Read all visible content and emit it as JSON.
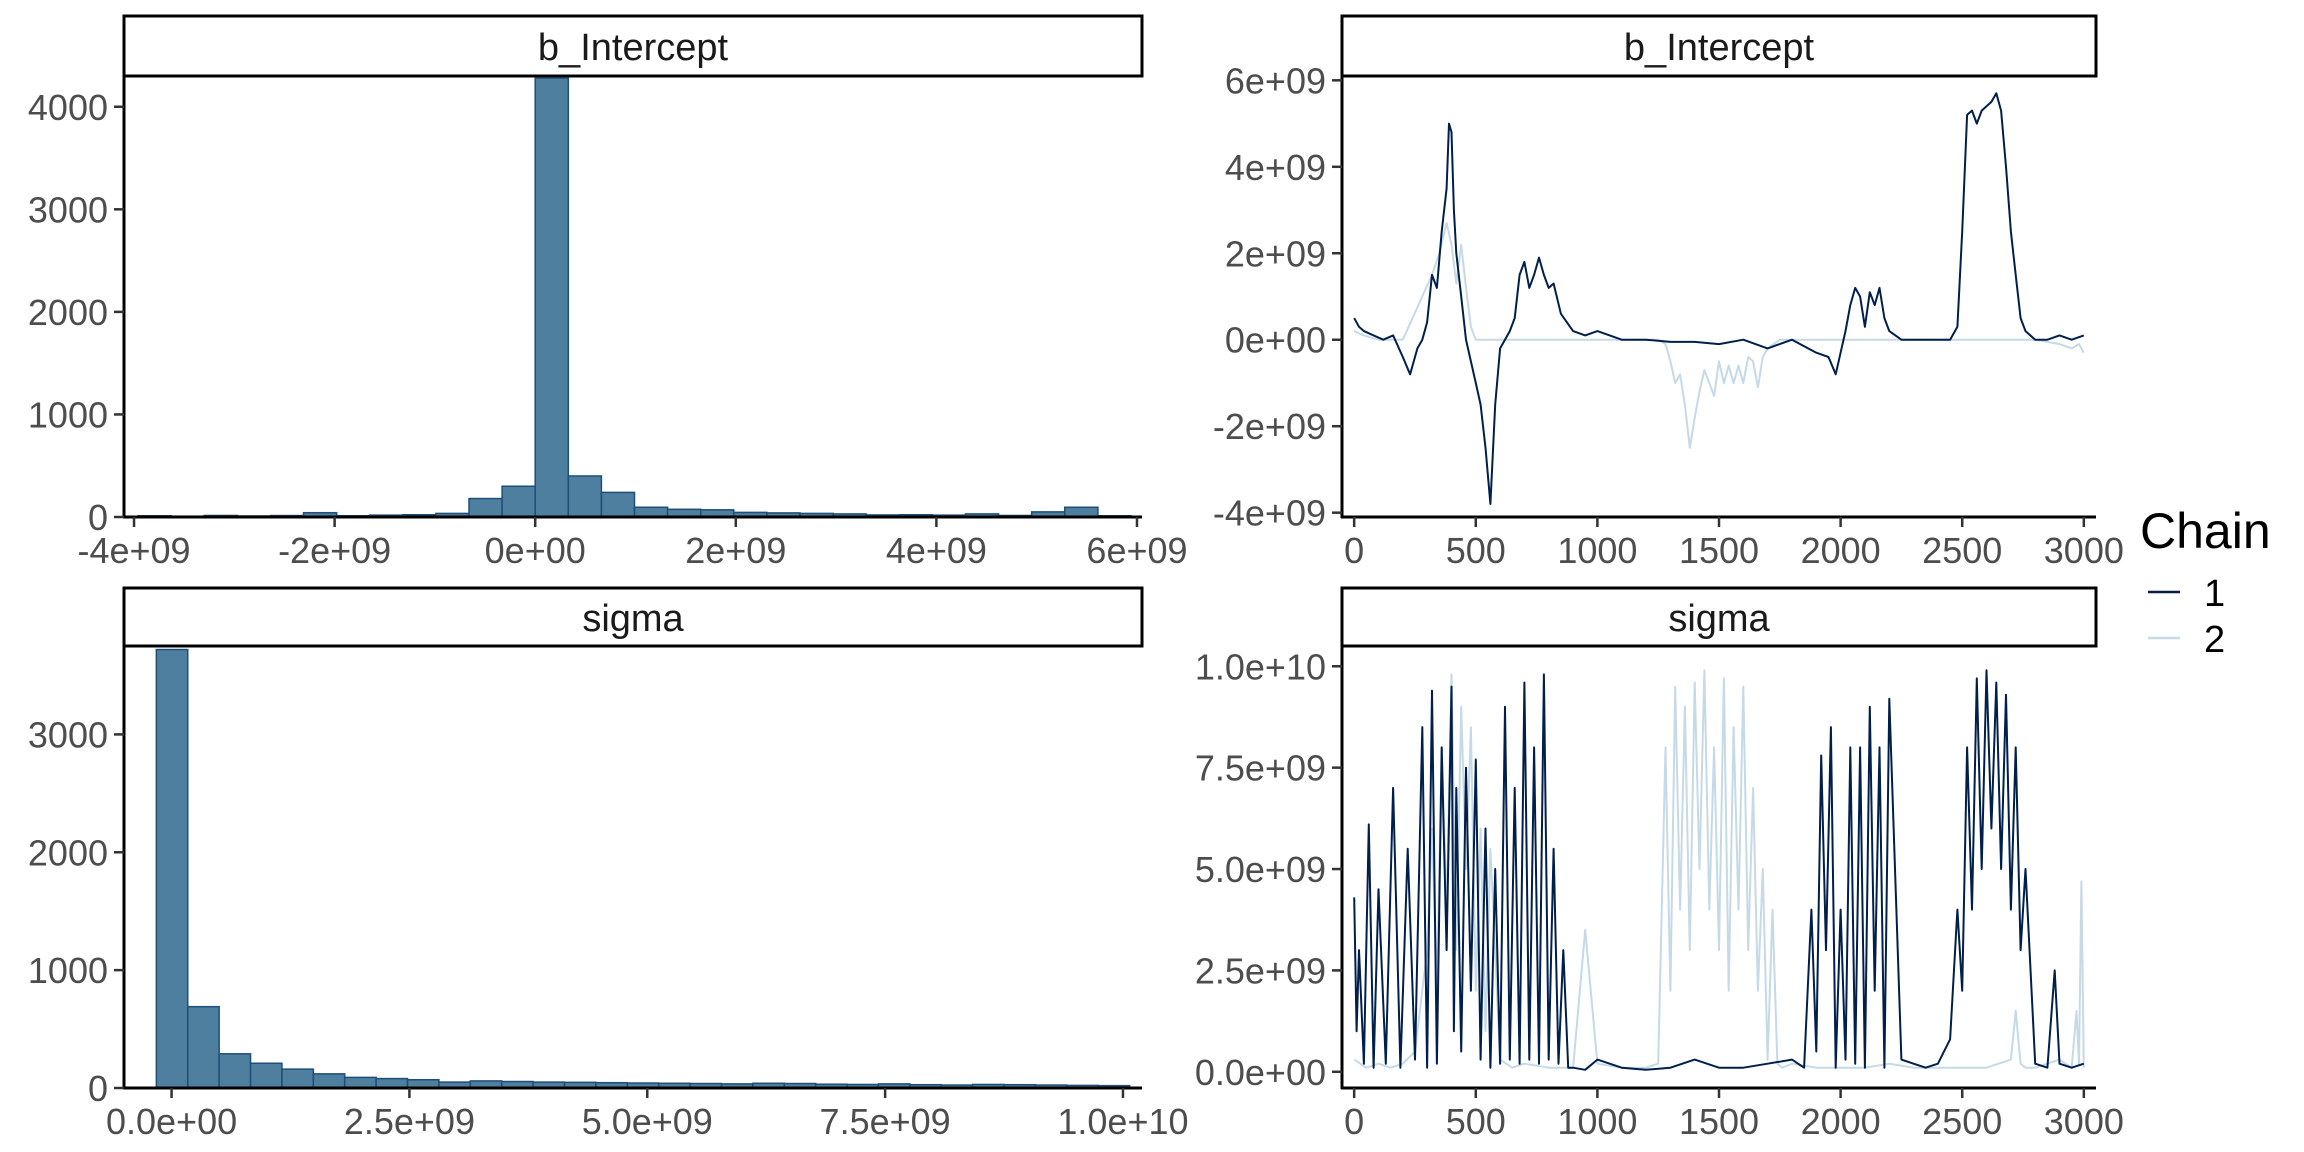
{
  "legend": {
    "title": "Chain",
    "entries": [
      {
        "label": "1",
        "color": "#011f4b"
      },
      {
        "label": "2",
        "color": "#c6d9e6"
      }
    ]
  },
  "chart_data": [
    {
      "type": "bar",
      "subtype": "histogram",
      "title": "b_Intercept",
      "xlabel": "",
      "ylabel": "",
      "xlim": [
        -4100000000.0,
        6050000000.0
      ],
      "ylim": [
        0,
        4300
      ],
      "xticks": [
        -4000000000.0,
        -2000000000.0,
        0,
        2000000000.0,
        4000000000.0,
        6000000000.0
      ],
      "xtick_labels": [
        "-4e+09",
        "-2e+09",
        "0e+00",
        "2e+09",
        "4e+09",
        "6e+09"
      ],
      "yticks": [
        0,
        1000,
        2000,
        3000,
        4000
      ],
      "ytick_labels": [
        "0",
        "1000",
        "2000",
        "3000",
        "4000"
      ],
      "bin_width": 330000000.0,
      "bins_start": [
        -3960000000.0,
        -3630000000.0,
        -3300000000.0,
        -2970000000.0,
        -2640000000.0,
        -2310000000.0,
        -1980000000.0,
        -1650000000.0,
        -1320000000.0,
        -990000000.0,
        -660000000.0,
        -330000000.0,
        0,
        330000000.0,
        660000000.0,
        990000000.0,
        1320000000.0,
        1650000000.0,
        1980000000.0,
        2310000000.0,
        2640000000.0,
        2970000000.0,
        3300000000.0,
        3630000000.0,
        3960000000.0,
        4290000000.0,
        4620000000.0,
        4950000000.0,
        5280000000.0,
        5610000000.0
      ],
      "counts": [
        12,
        8,
        15,
        10,
        14,
        42,
        12,
        18,
        22,
        35,
        180,
        300,
        4280,
        400,
        240,
        95,
        75,
        70,
        45,
        40,
        35,
        30,
        20,
        22,
        18,
        30,
        15,
        50,
        95,
        12
      ],
      "fill": "#4f7f9e",
      "stroke": "#1f4e79"
    },
    {
      "type": "line",
      "subtype": "trace",
      "title": "b_Intercept",
      "xlabel": "",
      "ylabel": "",
      "xlim": [
        -50,
        3050
      ],
      "ylim": [
        -4100000000.0,
        6100000000.0
      ],
      "xticks": [
        0,
        500,
        1000,
        1500,
        2000,
        2500,
        3000
      ],
      "xtick_labels": [
        "0",
        "500",
        "1000",
        "1500",
        "2000",
        "2500",
        "3000"
      ],
      "yticks": [
        -4000000000.0,
        -2000000000.0,
        0,
        2000000000.0,
        4000000000.0,
        6000000000.0
      ],
      "ytick_labels": [
        "-4e+09",
        "-2e+09",
        "0e+00",
        "2e+09",
        "4e+09",
        "6e+09"
      ],
      "series": [
        {
          "name": "1",
          "color": "#011f4b",
          "x": [
            0,
            20,
            40,
            80,
            120,
            160,
            200,
            230,
            260,
            280,
            300,
            320,
            340,
            360,
            380,
            390,
            400,
            410,
            420,
            440,
            460,
            480,
            500,
            520,
            540,
            560,
            580,
            600,
            620,
            640,
            660,
            680,
            700,
            720,
            740,
            760,
            780,
            800,
            820,
            850,
            900,
            950,
            1000,
            1100,
            1200,
            1300,
            1400,
            1500,
            1600,
            1700,
            1800,
            1900,
            1950,
            1980,
            2000,
            2020,
            2040,
            2060,
            2080,
            2100,
            2120,
            2140,
            2160,
            2180,
            2200,
            2250,
            2300,
            2350,
            2400,
            2450,
            2480,
            2500,
            2520,
            2540,
            2560,
            2580,
            2600,
            2620,
            2640,
            2660,
            2680,
            2700,
            2720,
            2740,
            2760,
            2800,
            2850,
            2900,
            2950,
            3000
          ],
          "y": [
            500000000.0,
            300000000.0,
            200000000.0,
            100000000.0,
            0,
            100000000.0,
            -400000000.0,
            -800000000.0,
            -200000000.0,
            0,
            400000000.0,
            1500000000.0,
            1200000000.0,
            2500000000.0,
            3500000000.0,
            5000000000.0,
            4800000000.0,
            3000000000.0,
            2000000000.0,
            1000000000.0,
            0,
            -500000000.0,
            -1000000000.0,
            -1500000000.0,
            -2500000000.0,
            -3800000000.0,
            -1500000000.0,
            -200000000.0,
            0,
            200000000.0,
            500000000.0,
            1500000000.0,
            1800000000.0,
            1200000000.0,
            1500000000.0,
            1900000000.0,
            1500000000.0,
            1200000000.0,
            1300000000.0,
            600000000.0,
            200000000.0,
            100000000.0,
            200000000.0,
            0,
            0,
            -50000000.0,
            -50000000.0,
            -100000000.0,
            0,
            -200000000.0,
            0,
            -300000000.0,
            -400000000.0,
            -800000000.0,
            -300000000.0,
            200000000.0,
            800000000.0,
            1200000000.0,
            1000000000.0,
            300000000.0,
            1100000000.0,
            800000000.0,
            1200000000.0,
            500000000.0,
            200000000.0,
            0,
            0,
            0,
            0,
            0,
            300000000.0,
            2500000000.0,
            5200000000.0,
            5300000000.0,
            5000000000.0,
            5300000000.0,
            5400000000.0,
            5500000000.0,
            5700000000.0,
            5300000000.0,
            4000000000.0,
            2500000000.0,
            1500000000.0,
            500000000.0,
            200000000.0,
            0,
            0,
            100000000.0,
            0,
            100000000.0
          ]
        },
        {
          "name": "2",
          "color": "#c6d9e6",
          "x": [
            0,
            40,
            100,
            200,
            280,
            320,
            350,
            380,
            400,
            420,
            440,
            460,
            480,
            500,
            550,
            600,
            700,
            800,
            900,
            1000,
            1100,
            1200,
            1250,
            1280,
            1300,
            1320,
            1340,
            1360,
            1380,
            1400,
            1420,
            1440,
            1460,
            1480,
            1500,
            1520,
            1540,
            1560,
            1580,
            1600,
            1620,
            1640,
            1660,
            1680,
            1700,
            1750,
            1800,
            1900,
            2000,
            2100,
            2200,
            2300,
            2400,
            2500,
            2600,
            2700,
            2800,
            2900,
            2950,
            2980,
            3000
          ],
          "y": [
            200000000.0,
            100000000.0,
            0,
            0,
            1000000000.0,
            1500000000.0,
            2000000000.0,
            2700000000.0,
            2200000000.0,
            1300000000.0,
            2200000000.0,
            1200000000.0,
            300000000.0,
            0,
            0,
            0,
            0,
            0,
            0,
            0,
            0,
            0,
            0,
            -100000000.0,
            -500000000.0,
            -1000000000.0,
            -800000000.0,
            -1500000000.0,
            -2500000000.0,
            -1800000000.0,
            -1200000000.0,
            -700000000.0,
            -1000000000.0,
            -1300000000.0,
            -500000000.0,
            -1000000000.0,
            -600000000.0,
            -1000000000.0,
            -600000000.0,
            -1000000000.0,
            -400000000.0,
            -500000000.0,
            -1100000000.0,
            -400000000.0,
            -200000000.0,
            0,
            0,
            0,
            0,
            0,
            0,
            0,
            0,
            0,
            0,
            0,
            0,
            -100000000.0,
            -200000000.0,
            -100000000.0,
            -300000000.0
          ]
        }
      ]
    },
    {
      "type": "bar",
      "subtype": "histogram",
      "title": "sigma",
      "xlabel": "",
      "ylabel": "",
      "xlim": [
        -500000000.0,
        10200000000.0
      ],
      "ylim": [
        0,
        3750
      ],
      "xticks": [
        0,
        2500000000.0,
        5000000000.0,
        7500000000.0,
        10000000000.0
      ],
      "xtick_labels": [
        "0.0e+00",
        "2.5e+09",
        "5.0e+09",
        "7.5e+09",
        "1.0e+10"
      ],
      "yticks": [
        0,
        1000,
        2000,
        3000
      ],
      "ytick_labels": [
        "0",
        "1000",
        "2000",
        "3000"
      ],
      "bin_width": 330000000.0,
      "bins_start": [
        -160000000.0,
        170000000.0,
        500000000.0,
        830000000.0,
        1160000000.0,
        1490000000.0,
        1820000000.0,
        2150000000.0,
        2480000000.0,
        2810000000.0,
        3140000000.0,
        3470000000.0,
        3800000000.0,
        4130000000.0,
        4460000000.0,
        4790000000.0,
        5120000000.0,
        5450000000.0,
        5780000000.0,
        6110000000.0,
        6440000000.0,
        6770000000.0,
        7100000000.0,
        7430000000.0,
        7760000000.0,
        8090000000.0,
        8420000000.0,
        8750000000.0,
        9080000000.0,
        9410000000.0,
        9740000000.0
      ],
      "counts": [
        3720,
        690,
        290,
        210,
        160,
        120,
        90,
        80,
        70,
        50,
        60,
        55,
        50,
        48,
        45,
        42,
        40,
        38,
        35,
        40,
        38,
        32,
        30,
        35,
        28,
        25,
        30,
        28,
        25,
        22,
        20
      ],
      "fill": "#4f7f9e",
      "stroke": "#1f4e79"
    },
    {
      "type": "line",
      "subtype": "trace",
      "title": "sigma",
      "xlabel": "",
      "ylabel": "",
      "xlim": [
        -50,
        3050
      ],
      "ylim": [
        -400000000.0,
        10500000000.0
      ],
      "xticks": [
        0,
        500,
        1000,
        1500,
        2000,
        2500,
        3000
      ],
      "xtick_labels": [
        "0",
        "500",
        "1000",
        "1500",
        "2000",
        "2500",
        "3000"
      ],
      "yticks": [
        0,
        2500000000.0,
        5000000000.0,
        7500000000.0,
        10000000000.0
      ],
      "ytick_labels": [
        "0.0e+00",
        "2.5e+09",
        "5.0e+09",
        "7.5e+09",
        "1.0e+10"
      ],
      "series": [
        {
          "name": "1",
          "color": "#011f4b",
          "x": [
            0,
            10,
            20,
            40,
            60,
            80,
            100,
            130,
            160,
            190,
            220,
            250,
            280,
            300,
            320,
            340,
            360,
            380,
            400,
            410,
            420,
            440,
            460,
            480,
            500,
            520,
            540,
            560,
            580,
            600,
            620,
            640,
            660,
            680,
            700,
            720,
            740,
            760,
            780,
            800,
            820,
            840,
            860,
            880,
            900,
            950,
            1000,
            1100,
            1200,
            1300,
            1400,
            1500,
            1600,
            1700,
            1800,
            1850,
            1880,
            1900,
            1920,
            1940,
            1960,
            1980,
            2000,
            2020,
            2040,
            2060,
            2080,
            2100,
            2120,
            2140,
            2160,
            2180,
            2200,
            2250,
            2300,
            2350,
            2400,
            2450,
            2480,
            2500,
            2520,
            2540,
            2560,
            2580,
            2600,
            2620,
            2640,
            2660,
            2680,
            2700,
            2720,
            2740,
            2760,
            2800,
            2850,
            2880,
            2900,
            2950,
            3000
          ],
          "y": [
            4300000000.0,
            1000000000.0,
            3000000000.0,
            200000000.0,
            6100000000.0,
            100000000.0,
            4500000000.0,
            200000000.0,
            7000000000.0,
            100000000.0,
            5500000000.0,
            300000000.0,
            8500000000.0,
            100000000.0,
            9400000000.0,
            200000000.0,
            8000000000.0,
            3000000000.0,
            9500000000.0,
            1000000000.0,
            7000000000.0,
            500000000.0,
            7500000000.0,
            2000000000.0,
            7700000000.0,
            300000000.0,
            6000000000.0,
            100000000.0,
            5000000000.0,
            200000000.0,
            9000000000.0,
            300000000.0,
            7000000000.0,
            200000000.0,
            9600000000.0,
            300000000.0,
            8000000000.0,
            200000000.0,
            9800000000.0,
            300000000.0,
            5500000000.0,
            200000000.0,
            3000000000.0,
            100000000.0,
            100000000.0,
            50000000.0,
            300000000.0,
            100000000.0,
            50000000.0,
            100000000.0,
            300000000.0,
            100000000.0,
            100000000.0,
            200000000.0,
            300000000.0,
            100000000.0,
            4000000000.0,
            500000000.0,
            7800000000.0,
            3000000000.0,
            8500000000.0,
            100000000.0,
            4000000000.0,
            300000000.0,
            8000000000.0,
            200000000.0,
            8000000000.0,
            100000000.0,
            9000000000.0,
            2000000000.0,
            8000000000.0,
            100000000.0,
            9200000000.0,
            300000000.0,
            200000000.0,
            100000000.0,
            200000000.0,
            800000000.0,
            4000000000.0,
            2000000000.0,
            8000000000.0,
            4000000000.0,
            9700000000.0,
            5000000000.0,
            9900000000.0,
            6000000000.0,
            9600000000.0,
            5000000000.0,
            9300000000.0,
            4000000000.0,
            8000000000.0,
            3000000000.0,
            5000000000.0,
            200000000.0,
            100000000.0,
            2500000000.0,
            200000000.0,
            100000000.0,
            200000000.0
          ]
        },
        {
          "name": "2",
          "color": "#c6d9e6",
          "x": [
            0,
            50,
            100,
            150,
            200,
            250,
            300,
            320,
            340,
            360,
            380,
            400,
            420,
            440,
            460,
            480,
            500,
            520,
            540,
            560,
            600,
            650,
            700,
            800,
            900,
            950,
            1000,
            1100,
            1200,
            1250,
            1280,
            1300,
            1320,
            1340,
            1360,
            1380,
            1400,
            1420,
            1440,
            1460,
            1480,
            1500,
            1520,
            1540,
            1560,
            1580,
            1600,
            1620,
            1640,
            1660,
            1680,
            1700,
            1720,
            1740,
            1760,
            1800,
            1900,
            2000,
            2100,
            2200,
            2300,
            2400,
            2500,
            2600,
            2700,
            2720,
            2740,
            2760,
            2800,
            2850,
            2900,
            2950,
            2970,
            2980,
            2990,
            3000
          ],
          "y": [
            300000000.0,
            100000000.0,
            200000000.0,
            100000000.0,
            200000000.0,
            500000000.0,
            3000000000.0,
            6000000000.0,
            2000000000.0,
            8000000000.0,
            4000000000.0,
            9800000000.0,
            3000000000.0,
            9000000000.0,
            5000000000.0,
            8500000000.0,
            2000000000.0,
            6000000000.0,
            1000000000.0,
            5500000000.0,
            300000000.0,
            100000000.0,
            200000000.0,
            100000000.0,
            100000000.0,
            3500000000.0,
            200000000.0,
            100000000.0,
            100000000.0,
            200000000.0,
            8000000000.0,
            2000000000.0,
            9500000000.0,
            4000000000.0,
            9000000000.0,
            3000000000.0,
            9600000000.0,
            5000000000.0,
            9900000000.0,
            4000000000.0,
            8000000000.0,
            3000000000.0,
            9700000000.0,
            2000000000.0,
            8500000000.0,
            4000000000.0,
            9500000000.0,
            3000000000.0,
            7000000000.0,
            2000000000.0,
            5000000000.0,
            300000000.0,
            4000000000.0,
            200000000.0,
            100000000.0,
            200000000.0,
            100000000.0,
            100000000.0,
            100000000.0,
            200000000.0,
            100000000.0,
            100000000.0,
            100000000.0,
            100000000.0,
            300000000.0,
            1500000000.0,
            200000000.0,
            100000000.0,
            100000000.0,
            200000000.0,
            300000000.0,
            100000000.0,
            1500000000.0,
            200000000.0,
            4700000000.0,
            100000000.0
          ]
        }
      ]
    }
  ]
}
